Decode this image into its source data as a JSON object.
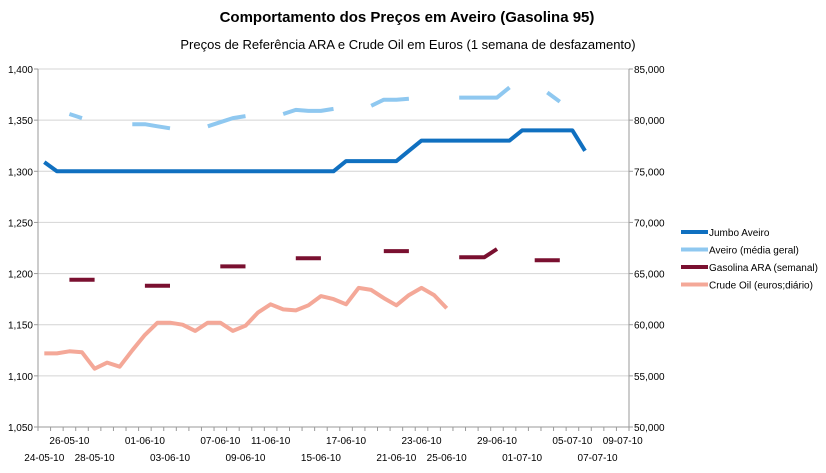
{
  "chart_data": {
    "type": "line",
    "title": "Comportamento dos Preços em Aveiro (Gasolina 95)",
    "subtitle": "Preços de Referência ARA e Crude Oil em Euros (1 semana de desfazamento)",
    "y_left": {
      "ylim": [
        1.05,
        1.4
      ],
      "ticks": [
        1.05,
        1.1,
        1.15,
        1.2,
        1.25,
        1.3,
        1.35,
        1.4
      ],
      "tick_labels": [
        "1,050",
        "1,100",
        "1,150",
        "1,200",
        "1,250",
        "1,300",
        "1,350",
        "1,400"
      ]
    },
    "y_right": {
      "ylim": [
        50000,
        85000
      ],
      "ticks": [
        50000,
        55000,
        60000,
        65000,
        70000,
        75000,
        80000,
        85000
      ],
      "tick_labels": [
        "50,000",
        "55,000",
        "60,000",
        "65,000",
        "70,000",
        "75,000",
        "80,000",
        "85,000"
      ]
    },
    "x": {
      "dates": [
        "24-05-10",
        "25-05-10",
        "26-05-10",
        "27-05-10",
        "28-05-10",
        "29-05-10",
        "30-05-10",
        "31-05-10",
        "01-06-10",
        "02-06-10",
        "03-06-10",
        "04-06-10",
        "05-06-10",
        "06-06-10",
        "07-06-10",
        "08-06-10",
        "09-06-10",
        "10-06-10",
        "11-06-10",
        "12-06-10",
        "13-06-10",
        "14-06-10",
        "15-06-10",
        "16-06-10",
        "17-06-10",
        "18-06-10",
        "19-06-10",
        "20-06-10",
        "21-06-10",
        "22-06-10",
        "23-06-10",
        "24-06-10",
        "25-06-10",
        "26-06-10",
        "27-06-10",
        "28-06-10",
        "29-06-10",
        "30-06-10",
        "01-07-10",
        "02-07-10",
        "03-07-10",
        "04-07-10",
        "05-07-10",
        "06-07-10",
        "07-07-10",
        "08-07-10",
        "09-07-10"
      ],
      "tick_labels_upper": [
        "26-05-10",
        "01-06-10",
        "07-06-10",
        "11-06-10",
        "17-06-10",
        "23-06-10",
        "29-06-10",
        "05-07-10",
        "09-07-10"
      ],
      "tick_labels_lower": [
        "24-05-10",
        "28-05-10",
        "03-06-10",
        "09-06-10",
        "15-06-10",
        "21-06-10",
        "25-06-10",
        "01-07-10",
        "07-07-10"
      ]
    },
    "legend_position": "right",
    "series": [
      {
        "name": "Jumbo Aveiro",
        "axis": "left",
        "color": "#1070c0",
        "values": [
          1.309,
          1.3,
          1.3,
          1.3,
          1.3,
          1.3,
          1.3,
          1.3,
          1.3,
          1.3,
          1.3,
          1.3,
          1.3,
          1.3,
          1.3,
          1.3,
          1.3,
          1.3,
          1.3,
          1.3,
          1.3,
          1.3,
          1.3,
          1.3,
          1.31,
          1.31,
          1.31,
          1.31,
          1.31,
          1.32,
          1.33,
          1.33,
          1.33,
          1.33,
          1.33,
          1.33,
          1.33,
          1.33,
          1.34,
          1.34,
          1.34,
          1.34,
          1.34,
          1.32,
          null,
          null,
          null
        ]
      },
      {
        "name": "Aveiro (média geral)",
        "axis": "left",
        "color": "#8fc8f0",
        "segments": [
          {
            "dates": [
              "26-05-10",
              "27-05-10"
            ],
            "values": [
              1.356,
              1.352
            ]
          },
          {
            "dates": [
              "31-05-10",
              "01-06-10",
              "02-06-10",
              "03-06-10"
            ],
            "values": [
              1.346,
              1.346,
              1.344,
              1.342
            ]
          },
          {
            "dates": [
              "06-06-10",
              "07-06-10",
              "08-06-10",
              "09-06-10"
            ],
            "values": [
              1.344,
              1.348,
              1.352,
              1.354
            ]
          },
          {
            "dates": [
              "12-06-10",
              "13-06-10",
              "14-06-10",
              "15-06-10",
              "16-06-10"
            ],
            "values": [
              1.356,
              1.36,
              1.359,
              1.359,
              1.361
            ]
          },
          {
            "dates": [
              "19-06-10",
              "20-06-10",
              "21-06-10",
              "22-06-10"
            ],
            "values": [
              1.364,
              1.37,
              1.37,
              1.371
            ]
          },
          {
            "dates": [
              "26-06-10",
              "27-06-10",
              "28-06-10",
              "29-06-10",
              "30-06-10"
            ],
            "values": [
              1.372,
              1.372,
              1.372,
              1.372,
              1.382
            ]
          },
          {
            "dates": [
              "03-07-10",
              "04-07-10"
            ],
            "values": [
              1.377,
              1.368
            ]
          }
        ]
      },
      {
        "name": "Gasolina ARA (semanal)",
        "axis": "right",
        "color": "#7a1030",
        "segments": [
          {
            "dates": [
              "26-05-10",
              "28-05-10"
            ],
            "values": [
              64400,
              64400
            ]
          },
          {
            "dates": [
              "01-06-10",
              "03-06-10"
            ],
            "values": [
              63800,
              63800
            ]
          },
          {
            "dates": [
              "07-06-10",
              "09-06-10"
            ],
            "values": [
              65700,
              65700
            ]
          },
          {
            "dates": [
              "13-06-10",
              "15-06-10"
            ],
            "values": [
              66500,
              66500
            ]
          },
          {
            "dates": [
              "20-06-10",
              "22-06-10"
            ],
            "values": [
              67200,
              67200
            ]
          },
          {
            "dates": [
              "26-06-10",
              "28-06-10",
              "29-06-10"
            ],
            "values": [
              66600,
              66600,
              67400
            ]
          },
          {
            "dates": [
              "02-07-10",
              "04-07-10"
            ],
            "values": [
              66300,
              66300
            ]
          }
        ]
      },
      {
        "name": "Crude Oil (euros;diário)",
        "axis": "right",
        "color": "#f4a898",
        "values": [
          57200,
          57200,
          57400,
          57300,
          55700,
          56300,
          55900,
          57500,
          59000,
          60200,
          60200,
          60000,
          59400,
          60200,
          60200,
          59400,
          59900,
          61200,
          62000,
          61500,
          61400,
          61900,
          62800,
          62500,
          62000,
          63600,
          63400,
          62600,
          61900,
          62900,
          63600,
          62900,
          61600,
          null,
          null,
          null,
          null,
          null,
          null,
          null,
          null,
          null,
          null,
          null,
          null,
          null,
          null
        ]
      }
    ]
  }
}
